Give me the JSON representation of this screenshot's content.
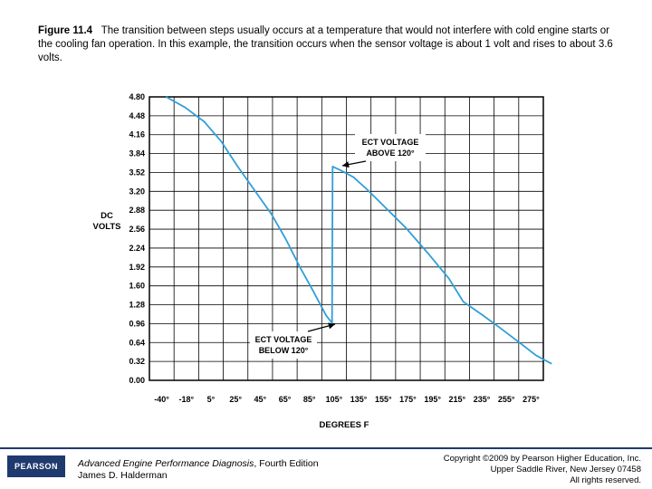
{
  "caption": {
    "figure_label": "Figure 11.4",
    "text": "The transition between steps usually occurs at a temperature that would not interfere with cold engine starts or the cooling fan operation. In this example, the transition occurs when the sensor voltage is about 1 volt and rises to about 3.6 volts."
  },
  "chart_data": {
    "type": "line",
    "xlabel": "DEGREES F",
    "ylabel_line1": "DC",
    "ylabel_line2": "VOLTS",
    "ylim": [
      0,
      4.8
    ],
    "xlim": [
      -40,
      290
    ],
    "grid": true,
    "x_tick_labels": [
      "-40°",
      "-18°",
      "5°",
      "25°",
      "45°",
      "65°",
      "85°",
      "105°",
      "135°",
      "155°",
      "175°",
      "195°",
      "215°",
      "235°",
      "255°",
      "275°"
    ],
    "y_ticks": [
      0.0,
      0.32,
      0.64,
      0.96,
      1.28,
      1.6,
      1.92,
      2.24,
      2.56,
      2.88,
      3.2,
      3.52,
      3.84,
      4.16,
      4.48,
      4.8
    ],
    "y_tick_labels": [
      "0.00",
      "0.32",
      "0.64",
      "0.96",
      "1.28",
      "1.60",
      "1.92",
      "2.24",
      "2.56",
      "2.88",
      "3.20",
      "3.52",
      "3.84",
      "4.16",
      "4.48",
      "4.80"
    ],
    "series": [
      {
        "color": "#2f9fd8",
        "points": [
          [
            -26,
            4.8
          ],
          [
            -10,
            4.62
          ],
          [
            6,
            4.38
          ],
          [
            20,
            4.05
          ],
          [
            34,
            3.62
          ],
          [
            48,
            3.22
          ],
          [
            62,
            2.82
          ],
          [
            74,
            2.4
          ],
          [
            86,
            1.92
          ],
          [
            97,
            1.52
          ],
          [
            108,
            1.1
          ],
          [
            113,
            0.97
          ],
          [
            113.5,
            3.62
          ],
          [
            120,
            3.56
          ],
          [
            131,
            3.44
          ],
          [
            143,
            3.22
          ],
          [
            158,
            2.92
          ],
          [
            175,
            2.58
          ],
          [
            193,
            2.16
          ],
          [
            211,
            1.72
          ],
          [
            223,
            1.33
          ],
          [
            238,
            1.12
          ],
          [
            253,
            0.9
          ],
          [
            270,
            0.64
          ],
          [
            284,
            0.42
          ],
          [
            297,
            0.28
          ]
        ]
      }
    ],
    "annotations": [
      {
        "line1": "ECT VOLTAGE",
        "line2": "ABOVE 120°"
      },
      {
        "line1": "ECT VOLTAGE",
        "line2": "BELOW 120°"
      }
    ]
  },
  "footer": {
    "logo": "PEARSON",
    "book_title": "Advanced Engine Performance Diagnosis",
    "book_edition": ", Fourth Edition",
    "author": "James D. Halderman",
    "copyright_line1": "Copyright ©2009 by Pearson Higher Education, Inc.",
    "copyright_line2": "Upper Saddle River, New Jersey 07458",
    "copyright_line3": "All rights reserved."
  }
}
